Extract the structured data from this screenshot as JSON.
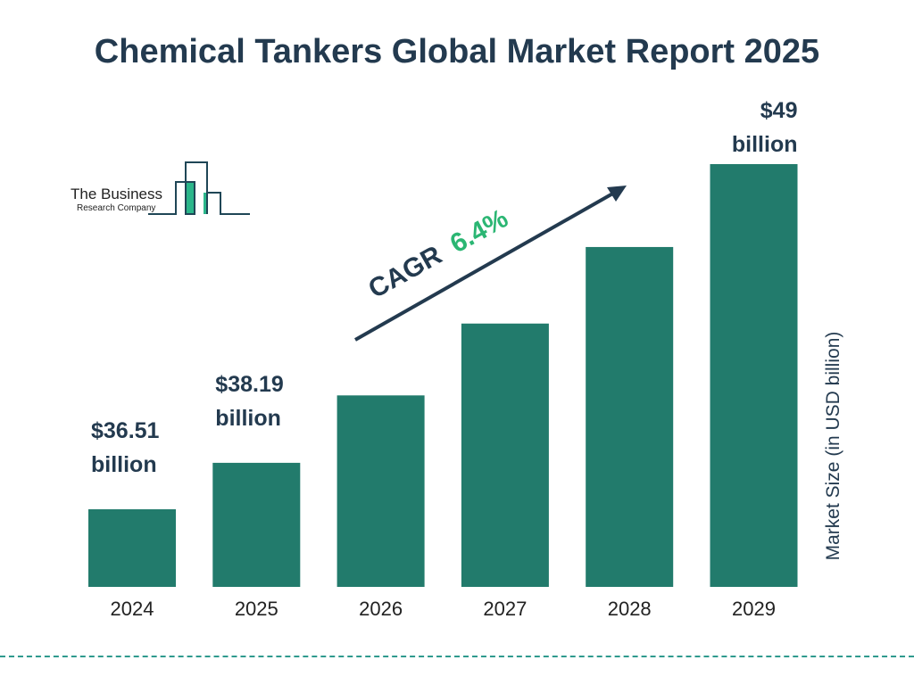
{
  "title": "Chemical Tankers Global Market Report 2025",
  "logo": {
    "line1": "The Business",
    "line2": "Research Company"
  },
  "chart_data": {
    "type": "bar",
    "categories": [
      "2024",
      "2025",
      "2026",
      "2027",
      "2028",
      "2029"
    ],
    "values": [
      36.51,
      38.19,
      40.63,
      43.23,
      46.0,
      49
    ],
    "data_labels": [
      [
        "$36.51",
        "billion"
      ],
      [
        "$38.19",
        "billion"
      ],
      null,
      null,
      null,
      [
        "$49",
        "billion"
      ]
    ],
    "ylabel": "Market Size (in USD billion)",
    "ylim": [
      33.7,
      49
    ],
    "grid": false,
    "bar_color": "#227b6c",
    "annotation": {
      "text": "CAGR",
      "value": "6.4%",
      "value_color": "#2bb673"
    }
  }
}
